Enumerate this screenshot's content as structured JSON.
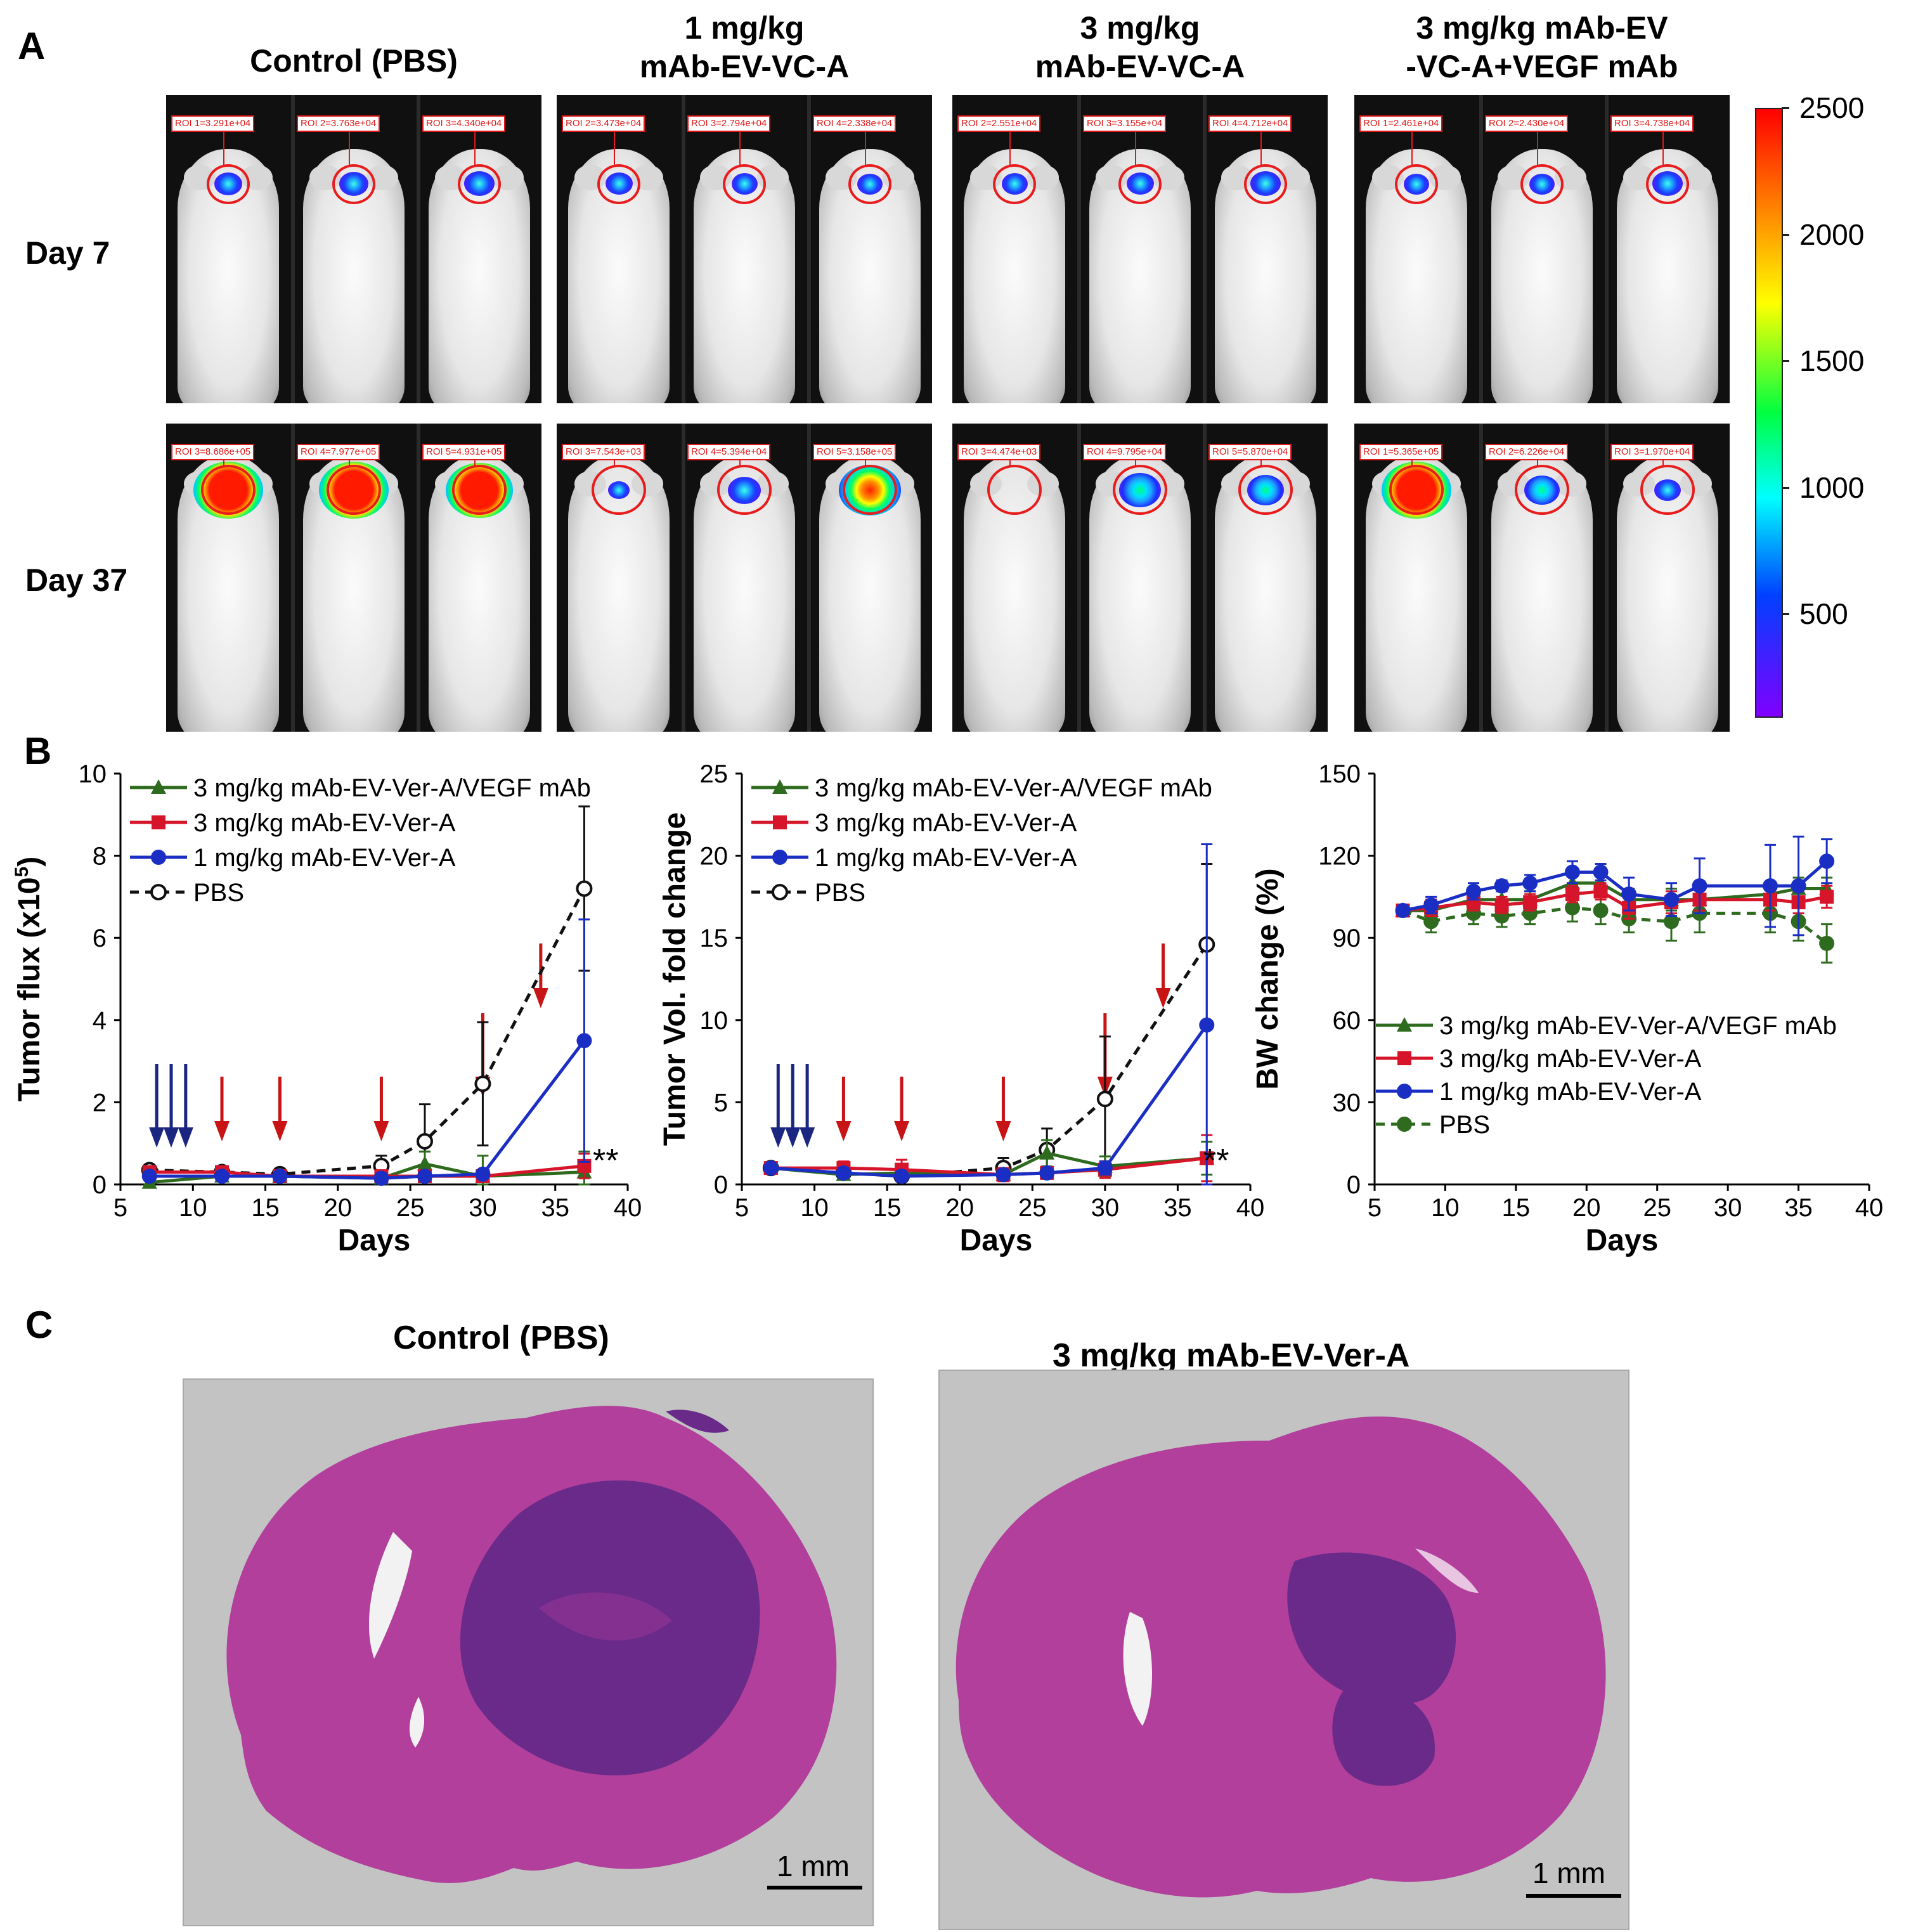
{
  "panelA": {
    "letter": "A",
    "groups": [
      {
        "title_lines": [
          "Control (PBS)"
        ]
      },
      {
        "title_lines": [
          "1 mg/kg",
          "mAb-EV-VC-A"
        ]
      },
      {
        "title_lines": [
          "3 mg/kg",
          "mAb-EV-VC-A"
        ]
      },
      {
        "title_lines": [
          "3 mg/kg mAb-EV",
          "-VC-A+VEGF mAb"
        ]
      }
    ],
    "rows": [
      {
        "label": "Day 7"
      },
      {
        "label": "Day 37"
      }
    ],
    "roi_day7": [
      [
        "ROI 1=3.291e+04",
        "ROI 2=3.763e+04",
        "ROI 3=4.340e+04"
      ],
      [
        "ROI 2=3.473e+04",
        "ROI 3=2.794e+04",
        "ROI 4=2.338e+04"
      ],
      [
        "ROI 2=2.551e+04",
        "ROI 3=3.155e+04",
        "ROI 4=4.712e+04"
      ],
      [
        "ROI 1=2.461e+04",
        "ROI 2=2.430e+04",
        "ROI 3=4.738e+04"
      ]
    ],
    "roi_day37": [
      [
        "ROI 3=8.686e+05",
        "ROI 4=7.977e+05",
        "ROI 5=4.931e+05"
      ],
      [
        "ROI 3=7.543e+03",
        "ROI 4=5.394e+04",
        "ROI 5=3.158e+05"
      ],
      [
        "ROI 3=4.474e+03",
        "ROI 4=9.795e+04",
        "ROI 5=5.870e+04"
      ],
      [
        "ROI 1=5.365e+05",
        "ROI 2=6.226e+04",
        "ROI 3=1.970e+04"
      ]
    ],
    "signal_levels": {
      "day7": [
        [
          0.18,
          0.2,
          0.22
        ],
        [
          0.16,
          0.14,
          0.12
        ],
        [
          0.14,
          0.16,
          0.22
        ],
        [
          0.12,
          0.12,
          0.22
        ]
      ],
      "day37": [
        [
          1.0,
          1.0,
          0.95
        ],
        [
          0.05,
          0.28,
          0.85
        ],
        [
          0.0,
          0.45,
          0.35
        ],
        [
          1.0,
          0.32,
          0.15
        ]
      ]
    },
    "colorbar": {
      "ticks": [
        "2500",
        "2000",
        "1500",
        "1000",
        "500"
      ],
      "tick_values": [
        2500,
        2000,
        1500,
        1000,
        500
      ],
      "min": 100,
      "max": 2500,
      "colors": [
        "#ff0000",
        "#ff8000",
        "#ffff00",
        "#00ff40",
        "#00ffff",
        "#0040ff",
        "#8000ff"
      ]
    }
  },
  "panelB": {
    "letter": "B",
    "colors": {
      "green": "#2e6b1f",
      "red": "#d6152a",
      "blue": "#1a2ec4",
      "black": "#111111",
      "pbs_green": "#2e6b1f",
      "arrow_blue": "#1a2680",
      "arrow_red": "#c81414"
    },
    "chart_data": [
      {
        "type": "line",
        "title": "",
        "xlabel": "Days",
        "ylabel_main": "Tumor flux (x10",
        "ylabel_sup": "5",
        "ylabel_end": ")",
        "xlim": [
          5,
          40
        ],
        "ylim": [
          0,
          10
        ],
        "xticks": [
          "5",
          "10",
          "15",
          "20",
          "25",
          "30",
          "35",
          "40"
        ],
        "yticks": [
          "0",
          "2",
          "4",
          "6",
          "8",
          "10"
        ],
        "x": [
          7,
          12,
          16,
          23,
          26,
          30,
          37
        ],
        "series": [
          {
            "name": "3 mg/kg mAb-EV-Ver-A/VEGF mAb",
            "color_key": "green",
            "marker": "triangle",
            "dashed": false,
            "values": [
              0.05,
              0.2,
              0.2,
              0.15,
              0.5,
              0.2,
              0.3
            ],
            "err": [
              0.05,
              0.1,
              0.05,
              0.1,
              0.3,
              0.5,
              0.5
            ]
          },
          {
            "name": "3 mg/kg mAb-EV-Ver-A",
            "color_key": "red",
            "marker": "square",
            "dashed": false,
            "values": [
              0.3,
              0.3,
              0.2,
              0.2,
              0.2,
              0.2,
              0.45
            ],
            "err": [
              0.05,
              0.05,
              0.05,
              0.05,
              0.05,
              0.1,
              0.3
            ]
          },
          {
            "name": "1 mg/kg mAb-EV-Ver-A",
            "color_key": "blue",
            "marker": "circle",
            "dashed": false,
            "values": [
              0.2,
              0.2,
              0.2,
              0.15,
              0.2,
              0.25,
              3.5
            ],
            "err": [
              0.05,
              0.05,
              0.05,
              0.05,
              0.05,
              0.1,
              2.95
            ]
          },
          {
            "name": "PBS",
            "color_key": "black",
            "marker": "open-circle",
            "dashed": true,
            "values": [
              0.35,
              0.3,
              0.25,
              0.45,
              1.05,
              2.45,
              7.2
            ],
            "err": [
              0.05,
              0.05,
              0.05,
              0.25,
              0.9,
              1.5,
              2.0
            ]
          }
        ],
        "blue_arrows": [
          7.5,
          8.5,
          9.5
        ],
        "red_arrows": [
          12,
          16,
          23,
          30,
          34
        ],
        "significance": "**"
      },
      {
        "type": "line",
        "title": "",
        "xlabel": "Days",
        "ylabel_main": "Tumor Vol. fold change",
        "xlim": [
          5,
          40
        ],
        "ylim": [
          0,
          25
        ],
        "xticks": [
          "5",
          "10",
          "15",
          "20",
          "25",
          "30",
          "35",
          "40"
        ],
        "yticks": [
          "0",
          "5",
          "10",
          "15",
          "20",
          "25"
        ],
        "x": [
          7,
          12,
          16,
          23,
          26,
          30,
          37
        ],
        "series": [
          {
            "name": "3 mg/kg mAb-EV-Ver-A/VEGF mAb",
            "color_key": "green",
            "marker": "triangle",
            "dashed": false,
            "values": [
              1.0,
              0.6,
              0.7,
              0.6,
              1.9,
              1.1,
              1.6
            ],
            "err": [
              0.1,
              0.2,
              0.2,
              0.3,
              0.8,
              0.6,
              1.0
            ]
          },
          {
            "name": "3 mg/kg mAb-EV-Ver-A",
            "color_key": "red",
            "marker": "square",
            "dashed": false,
            "values": [
              1.0,
              1.0,
              0.9,
              0.6,
              0.7,
              0.9,
              1.6
            ],
            "err": [
              0.1,
              0.4,
              0.6,
              0.4,
              0.3,
              0.5,
              1.4
            ]
          },
          {
            "name": "1 mg/kg mAb-EV-Ver-A",
            "color_key": "blue",
            "marker": "circle",
            "dashed": false,
            "values": [
              1.0,
              0.7,
              0.5,
              0.6,
              0.7,
              1.0,
              9.7
            ],
            "err": [
              0.1,
              0.3,
              0.3,
              0.3,
              0.3,
              0.4,
              11.0
            ]
          },
          {
            "name": "PBS",
            "color_key": "black",
            "marker": "open-circle",
            "dashed": true,
            "values": [
              1.0,
              0.7,
              0.5,
              1.0,
              2.1,
              5.2,
              14.6
            ],
            "err": [
              0.1,
              0.2,
              0.2,
              0.6,
              1.3,
              3.8,
              4.9
            ]
          }
        ],
        "blue_arrows": [
          7.5,
          8.5,
          9.5
        ],
        "red_arrows": [
          12,
          16,
          23,
          30,
          34
        ],
        "significance": "**"
      },
      {
        "type": "line",
        "title": "",
        "xlabel": "Days",
        "ylabel_main": "BW change (%)",
        "xlim": [
          5,
          40
        ],
        "ylim": [
          0,
          150
        ],
        "xticks": [
          "5",
          "10",
          "15",
          "20",
          "25",
          "30",
          "35",
          "40"
        ],
        "yticks": [
          "0",
          "30",
          "60",
          "90",
          "120",
          "150"
        ],
        "x": [
          7,
          9,
          12,
          14,
          16,
          19,
          21,
          23,
          26,
          28,
          33,
          35,
          37
        ],
        "series": [
          {
            "name": "3 mg/kg mAb-EV-Ver-A/VEGF mAb",
            "color_key": "green",
            "marker": "triangle",
            "dashed": false,
            "values": [
              100,
              100,
              104,
              104,
              104,
              110,
              110,
              104,
              104,
              104,
              106,
              108,
              108
            ],
            "err": [
              1,
              3,
              3,
              3,
              3,
              3,
              3,
              4,
              4,
              4,
              4,
              4,
              4
            ]
          },
          {
            "name": "3 mg/kg mAb-EV-Ver-A",
            "color_key": "red",
            "marker": "square",
            "dashed": false,
            "values": [
              100,
              101,
              103,
              102,
              103,
              106,
              107,
              101,
              103,
              104,
              104,
              103,
              105
            ],
            "err": [
              1,
              3,
              3,
              3,
              3,
              3,
              3,
              4,
              4,
              4,
              4,
              4,
              4
            ]
          },
          {
            "name": "1 mg/kg mAb-EV-Ver-A",
            "color_key": "blue",
            "marker": "circle",
            "dashed": false,
            "values": [
              100,
              102,
              107,
              109,
              110,
              114,
              114,
              106,
              104,
              109,
              109,
              109,
              118
            ],
            "err": [
              1,
              3,
              3,
              2,
              3,
              4,
              3,
              6,
              6,
              10,
              15,
              18,
              8
            ]
          },
          {
            "name": "PBS",
            "color_key": "pbs_green",
            "marker": "circle",
            "dashed": true,
            "values": [
              100,
              96,
              99,
              98,
              99,
              101,
              100,
              97,
              96,
              99,
              99,
              96,
              88
            ],
            "err": [
              1,
              4,
              4,
              4,
              4,
              5,
              5,
              5,
              7,
              7,
              7,
              7,
              7
            ]
          }
        ],
        "blue_arrows": [],
        "red_arrows": [],
        "significance": ""
      }
    ]
  },
  "panelC": {
    "letter": "C",
    "left_title": "Control (PBS)",
    "right_title": "3 mg/kg mAb-EV-Ver-A",
    "scale_bar": "1 mm",
    "colors": {
      "tissue": "#b3429c",
      "tumor": "#6b2a8c",
      "background": "#c3c3c3"
    }
  }
}
